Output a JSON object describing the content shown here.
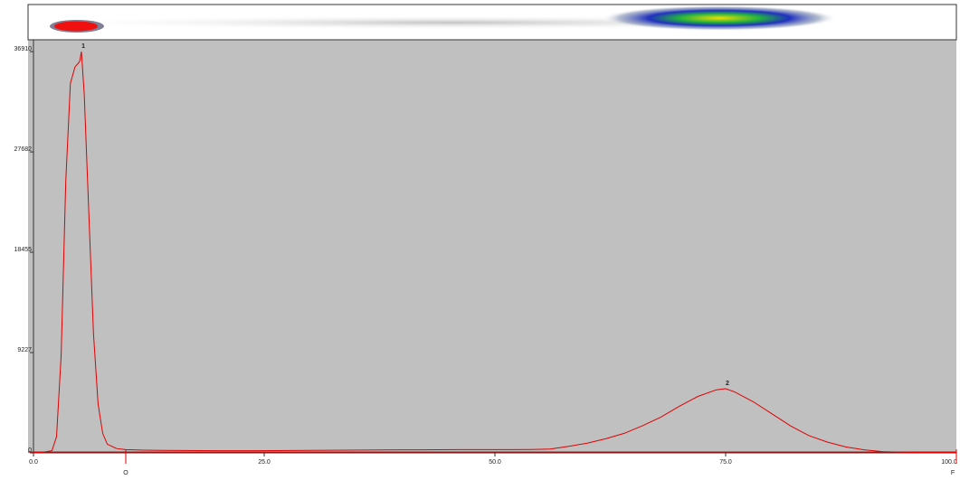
{
  "chart_data": {
    "type": "line",
    "x": [
      0,
      1,
      2,
      2.5,
      3,
      3.5,
      4,
      4.5,
      5,
      5.2,
      5.5,
      6,
      6.5,
      7,
      7.5,
      8,
      9,
      10,
      12,
      14,
      16,
      18,
      20,
      22,
      24,
      26,
      28,
      30,
      32,
      34,
      36,
      38,
      40,
      42,
      44,
      46,
      48,
      50,
      52,
      54,
      56,
      58,
      60,
      62,
      64,
      66,
      68,
      70,
      72,
      74,
      75,
      76,
      78,
      80,
      82,
      84,
      86,
      88,
      90,
      92,
      94,
      96,
      98,
      100
    ],
    "values": [
      0,
      50,
      200,
      1500,
      9000,
      25000,
      34000,
      35500,
      36000,
      36910,
      33000,
      22000,
      11000,
      4500,
      1800,
      800,
      400,
      300,
      250,
      230,
      220,
      210,
      200,
      200,
      200,
      210,
      220,
      230,
      240,
      250,
      260,
      270,
      280,
      280,
      290,
      300,
      300,
      300,
      300,
      310,
      350,
      600,
      900,
      1300,
      1800,
      2500,
      3300,
      4300,
      5200,
      5800,
      5900,
      5600,
      4700,
      3600,
      2500,
      1600,
      1000,
      550,
      280,
      120,
      60,
      30,
      20,
      10
    ],
    "color": "#e00000",
    "xlim": [
      0,
      100
    ],
    "ylim": [
      0,
      38000
    ],
    "xticks": [
      {
        "value": 0,
        "label": "0.0"
      },
      {
        "value": 25,
        "label": "25.0"
      },
      {
        "value": 50,
        "label": "50.0"
      },
      {
        "value": 75,
        "label": "75.0"
      },
      {
        "value": 100,
        "label": "100.0"
      }
    ],
    "yticks": [
      0,
      9227,
      18455,
      27682,
      36910
    ],
    "annotations": [
      {
        "text": "1",
        "x": 5.2,
        "y": 36910
      },
      {
        "text": "2",
        "x": 75,
        "y": 5900
      }
    ],
    "markers": [
      {
        "label": "O",
        "x": 10
      },
      {
        "label": "F",
        "x": 100
      }
    ]
  }
}
